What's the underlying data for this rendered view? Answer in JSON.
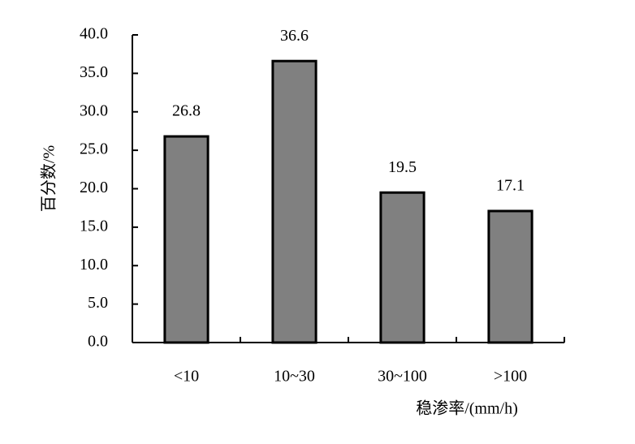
{
  "chart_data": {
    "type": "bar",
    "x_label": "稳渗率/(mm/h)",
    "y_label": "百分数/%",
    "categories": [
      "<10",
      "10~30",
      "30~100",
      ">100"
    ],
    "values": [
      26.8,
      36.6,
      19.5,
      17.1
    ],
    "color": "#808080",
    "ylim": [
      0,
      40
    ],
    "yticks": [
      {
        "value": 0,
        "label": "0.0"
      },
      {
        "value": 5,
        "label": "5.0"
      },
      {
        "value": 10,
        "label": "10.0"
      },
      {
        "value": 15,
        "label": "15.0"
      },
      {
        "value": 20,
        "label": "20.0"
      },
      {
        "value": 25,
        "label": "25.0"
      },
      {
        "value": 30,
        "label": "30.0"
      },
      {
        "value": 35,
        "label": "35.0"
      },
      {
        "value": 40,
        "label": "40.0"
      }
    ],
    "grid": false
  }
}
